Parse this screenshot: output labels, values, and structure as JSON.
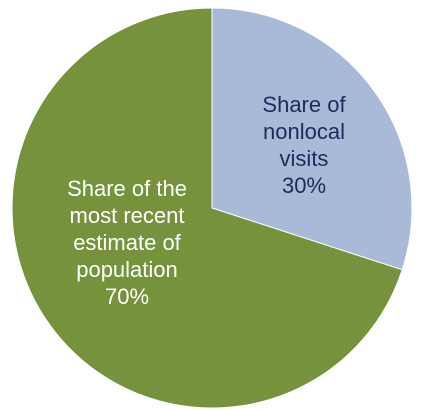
{
  "chart_data": {
    "type": "pie",
    "title": "",
    "slices": [
      {
        "label_lines": [
          "Share of",
          "nonlocal",
          "visits"
        ],
        "value": 30,
        "value_label": "30%",
        "color": "#A9B9D8",
        "text_color": "#1F2A5C"
      },
      {
        "label_lines": [
          "Share of the",
          "most recent",
          "estimate of",
          "population"
        ],
        "value": 70,
        "value_label": "70%",
        "color": "#76923C",
        "text_color": "#FFFFFF"
      }
    ],
    "legend": "none",
    "start_angle": "12 o'clock",
    "direction": "clockwise"
  }
}
